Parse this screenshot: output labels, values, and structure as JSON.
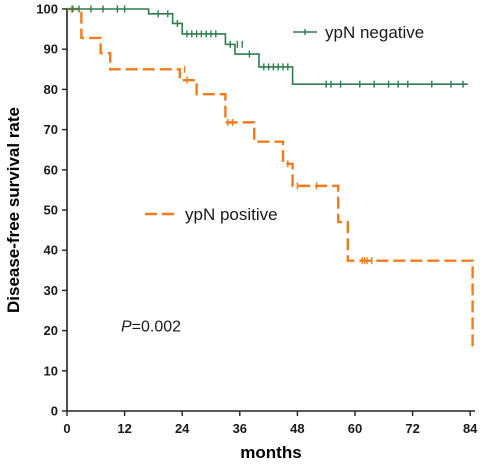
{
  "chart_data": {
    "type": "line",
    "xlabel": "months",
    "ylabel": "Disease-free survival rate",
    "xlim": [
      0,
      85
    ],
    "ylim": [
      0,
      100
    ],
    "xticks": [
      0,
      12,
      24,
      36,
      48,
      60,
      72,
      84
    ],
    "yticks": [
      0,
      10,
      20,
      30,
      40,
      50,
      60,
      70,
      80,
      90,
      100
    ],
    "grid": false,
    "series": [
      {
        "name": "ypN negative",
        "color": "#2e7d4f",
        "line_style": "solid",
        "steps": [
          [
            0,
            100
          ],
          [
            17,
            98.8
          ],
          [
            22,
            96.4
          ],
          [
            24,
            93.8
          ],
          [
            33,
            91.2
          ],
          [
            35,
            88.8
          ],
          [
            40,
            85.6
          ],
          [
            47,
            81.3
          ],
          [
            83.5,
            81.3
          ]
        ],
        "censored": [
          [
            1.2,
            100
          ],
          [
            2.5,
            100
          ],
          [
            5,
            100
          ],
          [
            7.5,
            100
          ],
          [
            10.5,
            100
          ],
          [
            12,
            100
          ],
          [
            19,
            98.8
          ],
          [
            21,
            98.8
          ],
          [
            23,
            96.4
          ],
          [
            25,
            93.8
          ],
          [
            26,
            93.8
          ],
          [
            27,
            93.8
          ],
          [
            28,
            93.8
          ],
          [
            29,
            93.8
          ],
          [
            30,
            93.8
          ],
          [
            31,
            93.8
          ],
          [
            34,
            91.2
          ],
          [
            35.5,
            91.2
          ],
          [
            36.5,
            91.2
          ],
          [
            38,
            88.8
          ],
          [
            41,
            85.6
          ],
          [
            42,
            85.6
          ],
          [
            43,
            85.6
          ],
          [
            44,
            85.6
          ],
          [
            45,
            85.6
          ],
          [
            46,
            85.6
          ],
          [
            54,
            81.3
          ],
          [
            55,
            81.3
          ],
          [
            57,
            81.3
          ],
          [
            61,
            81.3
          ],
          [
            64,
            81.3
          ],
          [
            67,
            81.3
          ],
          [
            69,
            81.3
          ],
          [
            71,
            81.3
          ],
          [
            76,
            81.3
          ],
          [
            80,
            81.3
          ],
          [
            82.5,
            81.3
          ]
        ]
      },
      {
        "name": "ypN positive",
        "color": "#f07c1e",
        "line_style": "dashed",
        "steps": [
          [
            0,
            100
          ],
          [
            3,
            92.8
          ],
          [
            7,
            89
          ],
          [
            9,
            85
          ],
          [
            23.5,
            82.3
          ],
          [
            27,
            78.8
          ],
          [
            33,
            71.8
          ],
          [
            39,
            67
          ],
          [
            45,
            61.5
          ],
          [
            47,
            56
          ],
          [
            56.5,
            47
          ],
          [
            58.5,
            37.4
          ],
          [
            84.5,
            37.4
          ],
          [
            84.5,
            15
          ]
        ],
        "censored": [
          [
            1,
            100
          ],
          [
            24.5,
            85
          ],
          [
            25,
            82.3
          ],
          [
            33.5,
            71.8
          ],
          [
            34.5,
            71.8
          ],
          [
            46,
            61.5
          ],
          [
            48,
            56
          ],
          [
            52,
            56
          ],
          [
            61.5,
            37.4
          ],
          [
            62,
            37.4
          ],
          [
            62.5,
            37.4
          ],
          [
            63.5,
            37.4
          ]
        ]
      }
    ],
    "annotation": {
      "italic": "P",
      "rest": "=0.002",
      "x": 12.5,
      "y": 21
    },
    "legend_placement": "inside"
  }
}
